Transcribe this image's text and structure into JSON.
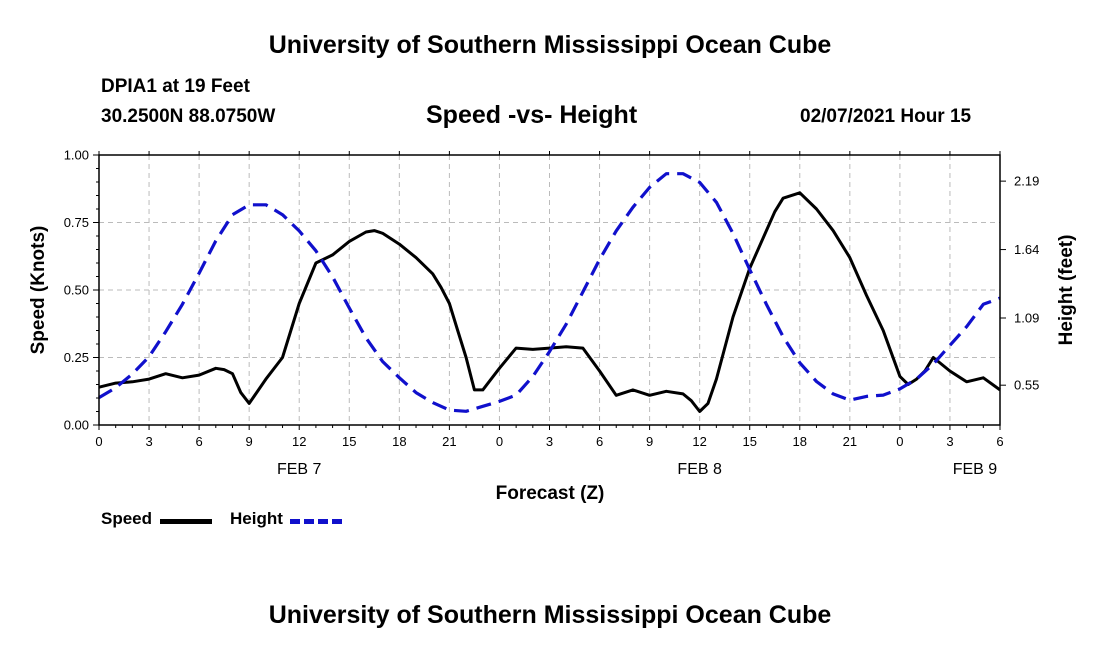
{
  "header": {
    "title": "University of Southern Mississippi Ocean Cube",
    "station": "DPIA1 at 19 Feet",
    "coords": "30.2500N 88.0750W",
    "subtitle": "Speed -vs- Height",
    "datetime": "02/07/2021 Hour 15"
  },
  "footer": {
    "title": "University of Southern Mississippi Ocean Cube"
  },
  "legend": {
    "speed_label": "Speed",
    "height_label": "Height"
  },
  "colors": {
    "speed": "#000000",
    "height": "#1010cc",
    "grid": "#bbbbbb"
  },
  "chart_data": {
    "type": "line",
    "title": "Speed -vs- Height",
    "xlabel": "Forecast (Z)",
    "ylabel": "Speed (Knots)",
    "y2label": "Height (feet)",
    "xlim": [
      0,
      54
    ],
    "ylim": [
      0,
      1.0
    ],
    "y2lim": [
      0.23,
      2.4
    ],
    "x_ticks": [
      0,
      3,
      6,
      9,
      12,
      15,
      18,
      21,
      24,
      27,
      30,
      33,
      36,
      39,
      42,
      45,
      48,
      51,
      54
    ],
    "x_tick_labels": [
      "0",
      "3",
      "6",
      "9",
      "12",
      "15",
      "18",
      "21",
      "0",
      "3",
      "6",
      "9",
      "12",
      "15",
      "18",
      "21",
      "0",
      "3",
      "6"
    ],
    "y_ticks": [
      0,
      0.25,
      0.5,
      0.75,
      1.0
    ],
    "y_tick_labels": [
      "0.00",
      "0.25",
      "0.50",
      "0.75",
      "1.00"
    ],
    "y2_ticks": [
      0.55,
      1.09,
      1.64,
      2.19
    ],
    "y2_tick_labels": [
      "0.55",
      "1.09",
      "1.64",
      "2.19"
    ],
    "date_labels": [
      {
        "x": 12,
        "label": "FEB 7"
      },
      {
        "x": 36,
        "label": "FEB 8"
      },
      {
        "x": 52.5,
        "label": "FEB 9"
      }
    ],
    "grid": true,
    "legend_position": "bottom-left",
    "series": [
      {
        "name": "Speed",
        "axis": "left",
        "style": "solid",
        "x": [
          0,
          1,
          2,
          3,
          4,
          5,
          6,
          7,
          7.5,
          8,
          8.5,
          9,
          10,
          11,
          12,
          13,
          14,
          15,
          16,
          16.5,
          17,
          18,
          19,
          20,
          20.5,
          21,
          21.5,
          22,
          22.5,
          23,
          24,
          25,
          26,
          27,
          28,
          29,
          30,
          31,
          32,
          33,
          34,
          35,
          35.5,
          36,
          36.5,
          37,
          38,
          39,
          40,
          40.5,
          41,
          42,
          43,
          44,
          45,
          46,
          47,
          48,
          48.5,
          49,
          49.5,
          50,
          51,
          52,
          53,
          54
        ],
        "values": [
          0.14,
          0.155,
          0.16,
          0.17,
          0.19,
          0.175,
          0.185,
          0.21,
          0.205,
          0.19,
          0.12,
          0.08,
          0.17,
          0.25,
          0.45,
          0.6,
          0.63,
          0.68,
          0.715,
          0.72,
          0.71,
          0.67,
          0.62,
          0.56,
          0.51,
          0.45,
          0.35,
          0.25,
          0.13,
          0.13,
          0.21,
          0.285,
          0.28,
          0.285,
          0.29,
          0.285,
          0.2,
          0.11,
          0.13,
          0.11,
          0.125,
          0.115,
          0.09,
          0.05,
          0.08,
          0.17,
          0.4,
          0.58,
          0.72,
          0.79,
          0.84,
          0.86,
          0.8,
          0.72,
          0.62,
          0.48,
          0.35,
          0.18,
          0.15,
          0.17,
          0.2,
          0.25,
          0.2,
          0.16,
          0.175,
          0.13
        ]
      },
      {
        "name": "Height",
        "axis": "right",
        "style": "dashed",
        "x": [
          0,
          1,
          2,
          3,
          4,
          5,
          6,
          7,
          8,
          9,
          10,
          11,
          12,
          13,
          14,
          15,
          16,
          17,
          18,
          19,
          20,
          21,
          22,
          23,
          24,
          25,
          26,
          27,
          28,
          29,
          30,
          31,
          32,
          33,
          34,
          35,
          36,
          37,
          38,
          39,
          40,
          41,
          42,
          43,
          44,
          45,
          46,
          47,
          48,
          49,
          50,
          51,
          52,
          53,
          54
        ],
        "values": [
          0.45,
          0.53,
          0.64,
          0.78,
          0.98,
          1.2,
          1.45,
          1.71,
          1.92,
          2.0,
          2.0,
          1.92,
          1.79,
          1.63,
          1.42,
          1.17,
          0.93,
          0.74,
          0.61,
          0.49,
          0.41,
          0.35,
          0.34,
          0.38,
          0.42,
          0.47,
          0.62,
          0.82,
          1.04,
          1.3,
          1.56,
          1.79,
          1.98,
          2.14,
          2.25,
          2.25,
          2.18,
          2.02,
          1.77,
          1.48,
          1.2,
          0.94,
          0.73,
          0.58,
          0.48,
          0.43,
          0.46,
          0.47,
          0.52,
          0.6,
          0.72,
          0.87,
          1.02,
          1.2,
          1.25
        ]
      }
    ]
  }
}
